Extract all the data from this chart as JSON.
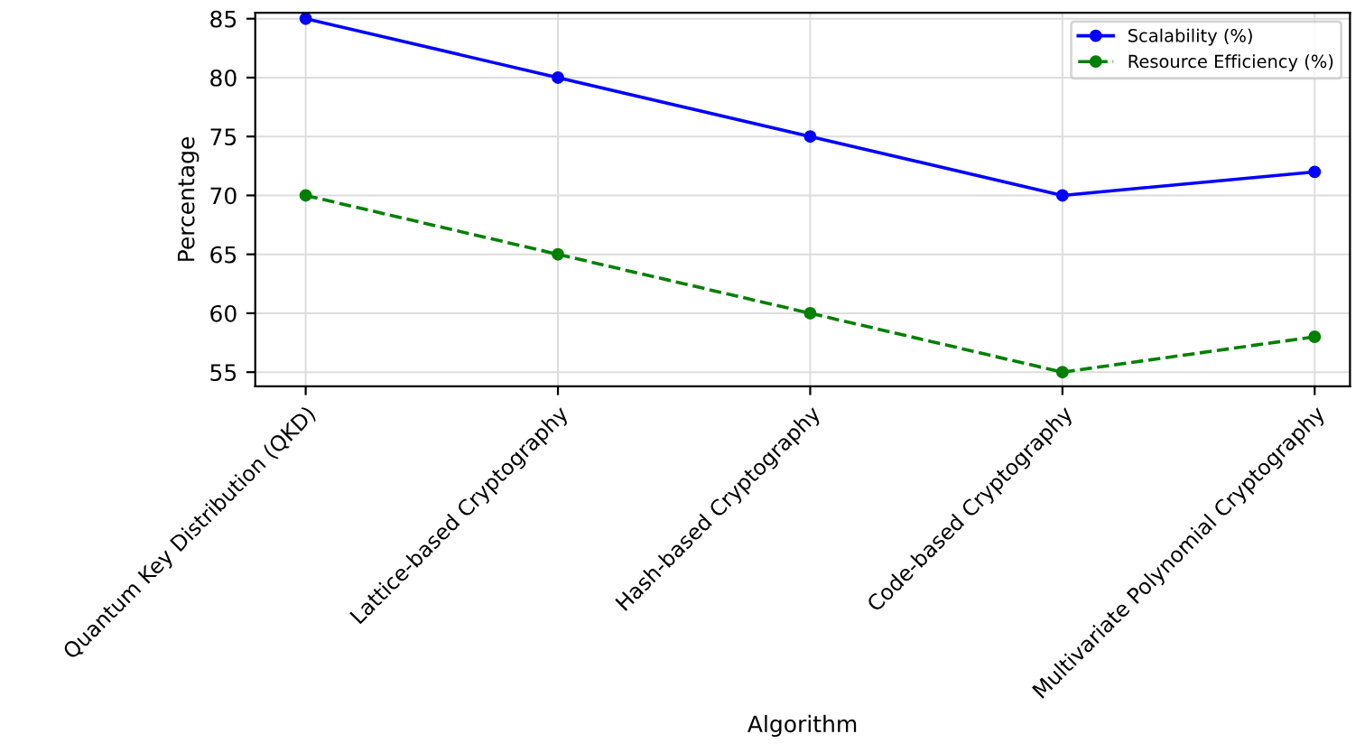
{
  "chart_data": {
    "type": "line",
    "xlabel": "Algorithm",
    "ylabel": "Percentage",
    "categories": [
      "Quantum Key Distribution (QKD)",
      "Lattice-based Cryptography",
      "Hash-based Cryptography",
      "Code-based Cryptography",
      "Multivariate Polynomial Cryptography"
    ],
    "series": [
      {
        "name": "Scalability (%)",
        "color": "#0000ff",
        "values": [
          85,
          80,
          75,
          70,
          72
        ],
        "line_style": "solid"
      },
      {
        "name": "Resource Efficiency (%)",
        "color": "#008000",
        "values": [
          70,
          65,
          60,
          55,
          58
        ],
        "line_style": "dashed"
      }
    ],
    "ylim": [
      53.8,
      85.5
    ],
    "yticks": [
      55,
      60,
      65,
      70,
      75,
      80,
      85
    ],
    "grid": true,
    "legend": "top right",
    "marker": "circle"
  }
}
